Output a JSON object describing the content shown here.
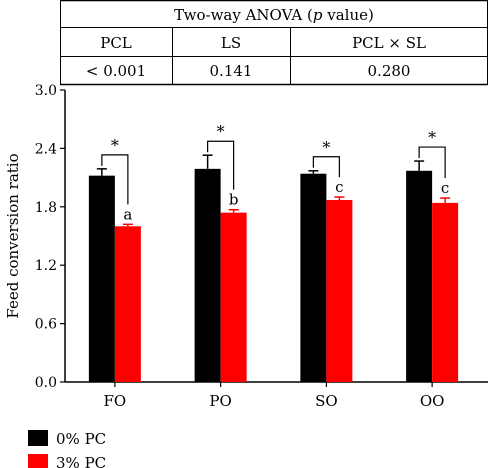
{
  "anova_table": {
    "title_prefix": "Two-way ANOVA (",
    "title_italic": "p",
    "title_suffix": " value)",
    "headers": [
      "PCL",
      "LS",
      "PCL × SL"
    ],
    "values": [
      "< 0.001",
      "0.141",
      "0.280"
    ]
  },
  "chart_data": {
    "type": "bar",
    "title": "",
    "xlabel": "",
    "ylabel": "Feed conversion ratio",
    "ylim": [
      0,
      3.0
    ],
    "yticks": [
      "0.0",
      "0.6",
      "1.2",
      "1.8",
      "2.4",
      "3.0"
    ],
    "categories": [
      "FO",
      "PO",
      "SO",
      "OO"
    ],
    "series": [
      {
        "name": "0% PC",
        "color": "#000000",
        "values": [
          2.12,
          2.19,
          2.14,
          2.17
        ],
        "errors": [
          0.07,
          0.14,
          0.03,
          0.1
        ],
        "labels": [
          "",
          "",
          "",
          ""
        ]
      },
      {
        "name": "3% PC",
        "color": "#ff0000",
        "values": [
          1.6,
          1.74,
          1.87,
          1.84
        ],
        "errors": [
          0.02,
          0.03,
          0.03,
          0.05
        ],
        "labels": [
          "a",
          "b",
          "c",
          "c"
        ]
      }
    ],
    "significance": [
      "*",
      "*",
      "*",
      "*"
    ],
    "legend_position": "bottom-left"
  }
}
